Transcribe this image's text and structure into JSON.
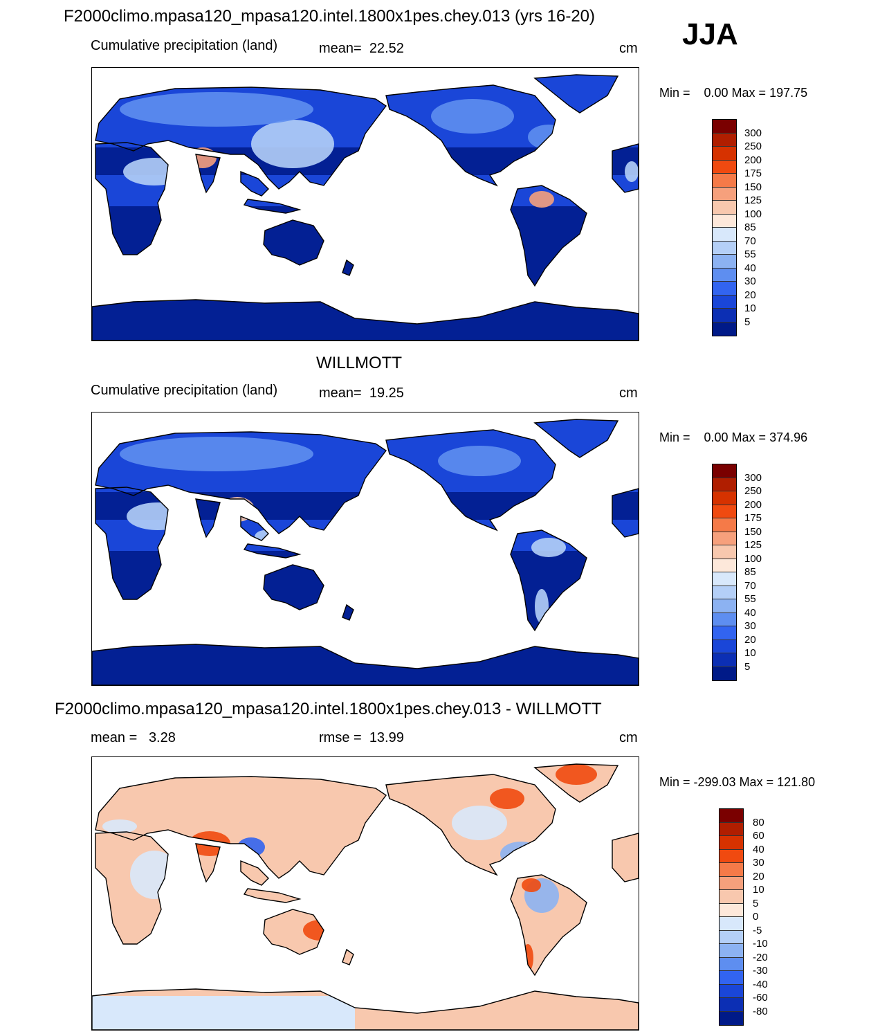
{
  "season": "JJA",
  "units": "cm",
  "panels": [
    {
      "title": "F2000climo.mpasa120_mpasa120.intel.1800x1pes.chey.013 (yrs 16-20)",
      "subtitle": "Cumulative precipitation (land)",
      "stat_label": "mean=",
      "stat_value": "22.52",
      "range_text": "Min =    0.00 Max = 197.75",
      "scale": "precip",
      "variant": "model"
    },
    {
      "title": "WILLMOTT",
      "subtitle": "Cumulative precipitation (land)",
      "stat_label": "mean=",
      "stat_value": "19.25",
      "range_text": "Min =    0.00 Max = 374.96",
      "scale": "precip",
      "variant": "obs"
    },
    {
      "title": "F2000climo.mpasa120_mpasa120.intel.1800x1pes.chey.013 - WILLMOTT",
      "subtitle": "mean =",
      "subtitle_value": "3.28",
      "stat_label": "rmse =",
      "stat_value": "13.99",
      "range_text": "Min = -299.03 Max = 121.80",
      "scale": "diff",
      "variant": "diff"
    }
  ],
  "scales": {
    "precip": {
      "labels": [
        "300",
        "250",
        "200",
        "175",
        "150",
        "125",
        "100",
        "85",
        "70",
        "55",
        "40",
        "30",
        "20",
        "10",
        "5"
      ],
      "colors": [
        "#7a0000",
        "#b01e00",
        "#d63200",
        "#f04a10",
        "#f57a48",
        "#f6a07c",
        "#f8c8ae",
        "#fde8da",
        "#d8e8fb",
        "#b4cff7",
        "#8cb2f2",
        "#5e8ef0",
        "#3264f0",
        "#1a46d8",
        "#0c2fb4",
        "#001a88"
      ]
    },
    "diff": {
      "labels": [
        "80",
        "60",
        "40",
        "30",
        "20",
        "10",
        "5",
        "0",
        "-5",
        "-10",
        "-20",
        "-30",
        "-40",
        "-60",
        "-80"
      ],
      "colors": [
        "#7a0000",
        "#b01e00",
        "#d63200",
        "#f04a10",
        "#f57a48",
        "#f6a07c",
        "#f8c8ae",
        "#fde8da",
        "#d8e8fb",
        "#b4cff7",
        "#8cb2f2",
        "#5e8ef0",
        "#3264f0",
        "#1a46d8",
        "#0c2fb4",
        "#001a88"
      ]
    }
  }
}
